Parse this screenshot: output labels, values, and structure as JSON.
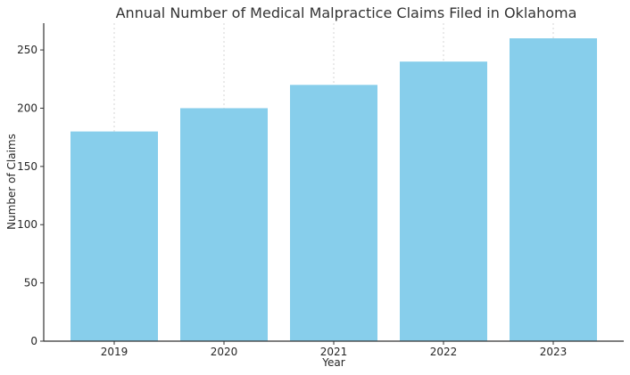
{
  "chart_data": {
    "type": "bar",
    "title": "Annual Number of Medical Malpractice Claims Filed in Oklahoma",
    "xlabel": "Year",
    "ylabel": "Number of Claims",
    "categories": [
      "2019",
      "2020",
      "2021",
      "2022",
      "2023"
    ],
    "values": [
      180,
      200,
      220,
      240,
      260
    ],
    "ylim": [
      0,
      273
    ],
    "yticks": [
      0,
      50,
      100,
      150,
      200,
      250
    ],
    "grid": "vertical-dotted",
    "bar_color": "#87CEEB",
    "grid_color": "#cccccc",
    "axis_color": "#333333"
  }
}
